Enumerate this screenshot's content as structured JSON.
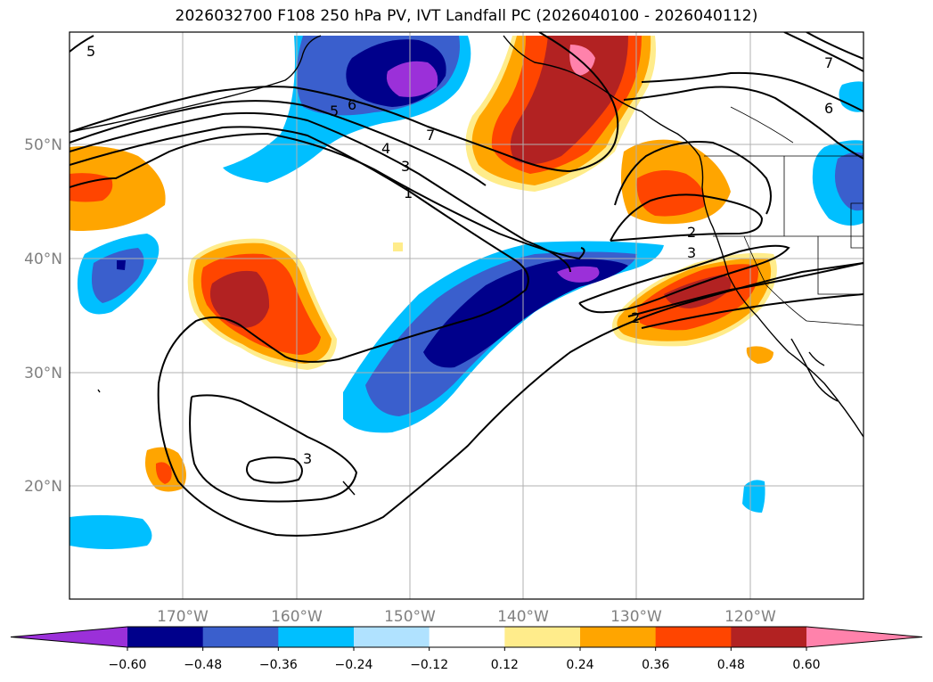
{
  "title": "2026032700 F108 250 hPa PV, IVT Landfall PC (2026040100 - 2026040112)",
  "map": {
    "lon_labels": [
      "170°W",
      "160°W",
      "150°W",
      "140°W",
      "130°W",
      "120°W"
    ],
    "lat_labels": [
      "50°N",
      "40°N",
      "30°N",
      "20°N"
    ],
    "contour_labels": [
      "5",
      "6",
      "5",
      "4",
      "3",
      "1",
      "7",
      "7",
      "6",
      "2",
      "3",
      "2",
      "3"
    ]
  },
  "colorbar": {
    "ticks": [
      "−0.60",
      "−0.48",
      "−0.36",
      "−0.24",
      "−0.12",
      "0.12",
      "0.24",
      "0.36",
      "0.48",
      "0.60"
    ],
    "colors": [
      "#9b30d9",
      "#00008b",
      "#3a5fcd",
      "#00bfff",
      "#b0e2ff",
      "#ffffff",
      "#ffec8b",
      "#ffa500",
      "#ff4500",
      "#b22222",
      "#ff82ab"
    ]
  }
}
